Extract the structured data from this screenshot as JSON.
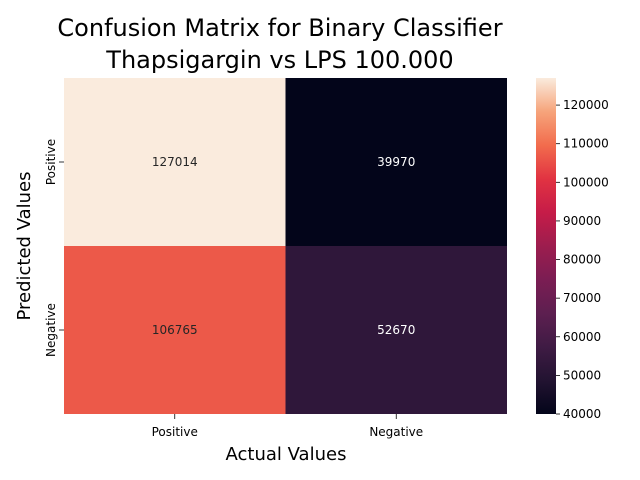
{
  "chart_data": {
    "type": "heatmap",
    "title_line1": "Confusion Matrix for Binary Classifier",
    "title_line2": "Thapsigargin vs LPS 100.000",
    "xlabel": "Actual Values",
    "ylabel": "Predicted Values",
    "x_categories": [
      "Positive",
      "Negative"
    ],
    "y_categories": [
      "Positive",
      "Negative"
    ],
    "values": [
      [
        127014,
        39970
      ],
      [
        106765,
        52670
      ]
    ],
    "cell_labels": [
      [
        "127014",
        "39970"
      ],
      [
        "106765",
        "52670"
      ]
    ],
    "colorbar": {
      "min": 40000,
      "max": 127014,
      "ticks": [
        40000,
        50000,
        60000,
        70000,
        80000,
        90000,
        100000,
        110000,
        120000
      ],
      "tick_labels": [
        "40000",
        "50000",
        "60000",
        "70000",
        "80000",
        "90000",
        "100000",
        "110000",
        "120000"
      ],
      "colormap": "rocket"
    }
  }
}
